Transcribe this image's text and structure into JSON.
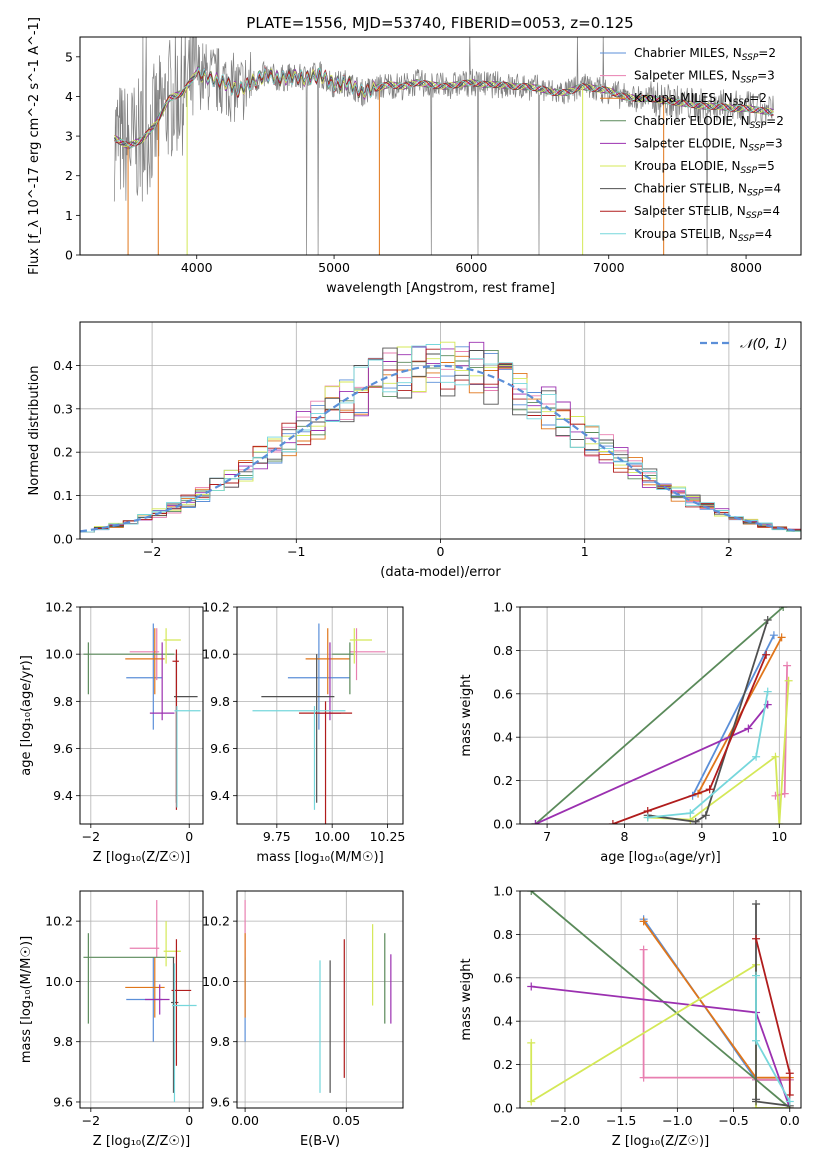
{
  "figure_title": "PLATE=1556, MJD=53740, FIBERID=0053, z=0.125",
  "colors": {
    "Chabrier MILES": "#5b8fd8",
    "Salpeter MILES": "#e87fb0",
    "Kroupa MILES": "#e0761a",
    "Chabrier ELODIE": "#5a8a5a",
    "Salpeter ELODIE": "#9b30b0",
    "Kroupa ELODIE": "#d4e857",
    "Chabrier STELIB": "#505050",
    "Salpeter STELIB": "#b01c1c",
    "Kroupa STELIB": "#76d7dc",
    "data": "#808080",
    "normal": "#5b8fd8"
  },
  "chart_data": [
    {
      "id": "spectrum",
      "type": "line",
      "title": "PLATE=1556, MJD=53740, FIBERID=0053, z=0.125",
      "xlabel": "wavelength [Angstrom, rest frame]",
      "ylabel": "Flux [f_λ 10^-17 erg cm^-2 s^-1 A^-1]",
      "xlim": [
        3150,
        8400
      ],
      "ylim": [
        0,
        5.5
      ],
      "xticks": [
        4000,
        5000,
        6000,
        7000,
        8000
      ],
      "yticks": [
        0,
        1,
        2,
        3,
        4,
        5
      ],
      "grid": false,
      "legend_position": "upper right",
      "legend": [
        {
          "label": "Chabrier MILES, N",
          "sub": "SSP",
          "tail": "=2",
          "key": "Chabrier MILES"
        },
        {
          "label": "Salpeter MILES, N",
          "sub": "SSP",
          "tail": "=3",
          "key": "Salpeter MILES"
        },
        {
          "label": "Kroupa MILES, N",
          "sub": "SSP",
          "tail": "=2",
          "key": "Kroupa MILES"
        },
        {
          "label": "Chabrier ELODIE, N",
          "sub": "SSP",
          "tail": "=2",
          "key": "Chabrier ELODIE"
        },
        {
          "label": "Salpeter ELODIE, N",
          "sub": "SSP",
          "tail": "=3",
          "key": "Salpeter ELODIE"
        },
        {
          "label": "Kroupa ELODIE, N",
          "sub": "SSP",
          "tail": "=5",
          "key": "Kroupa ELODIE"
        },
        {
          "label": "Chabrier STELIB, N",
          "sub": "SSP",
          "tail": "=4",
          "key": "Chabrier STELIB"
        },
        {
          "label": "Salpeter STELIB, N",
          "sub": "SSP",
          "tail": "=4",
          "key": "Salpeter STELIB"
        },
        {
          "label": "Kroupa STELIB, N",
          "sub": "SSP",
          "tail": "=4",
          "key": "Kroupa STELIB"
        }
      ],
      "continuum_knots": {
        "x": [
          3400,
          3500,
          3600,
          3700,
          3800,
          3900,
          4000,
          4100,
          4200,
          4300,
          4400,
          4500,
          4600,
          4700,
          4800,
          4900,
          5000,
          5100,
          5200,
          5300,
          5400,
          5500,
          5600,
          5700,
          5800,
          5900,
          6000,
          6100,
          6200,
          6300,
          6400,
          6500,
          6600,
          6700,
          6800,
          6900,
          7000,
          7100,
          7200,
          7300,
          7400,
          7500,
          7600,
          7700,
          7800,
          7900,
          8000,
          8100,
          8200
        ],
        "y": [
          2.95,
          2.75,
          2.9,
          3.3,
          3.95,
          4.1,
          4.6,
          4.45,
          4.35,
          4.15,
          4.35,
          4.55,
          4.45,
          4.5,
          4.45,
          4.55,
          4.3,
          4.35,
          4.1,
          4.2,
          4.3,
          4.25,
          4.35,
          4.3,
          4.25,
          4.3,
          4.35,
          4.3,
          4.3,
          4.25,
          4.25,
          4.2,
          4.1,
          4.1,
          4.25,
          4.2,
          4.15,
          4.0,
          3.95,
          3.95,
          3.9,
          3.85,
          3.8,
          3.75,
          3.75,
          3.7,
          3.7,
          3.65,
          3.6
        ]
      }
    },
    {
      "id": "residuals",
      "type": "line",
      "xlabel": "(data-model)/error",
      "ylabel": "Normed distribution",
      "xlim": [
        -2.5,
        2.5
      ],
      "ylim": [
        0,
        0.5
      ],
      "xticks": [
        -2,
        -1,
        0,
        1,
        2
      ],
      "yticks": [
        0.0,
        0.1,
        0.2,
        0.3,
        0.4
      ],
      "grid": true,
      "legend_position": "upper right",
      "legend": [
        {
          "label": "𝒩(0, 1)",
          "key": "normal"
        }
      ],
      "curve": {
        "name": "𝒩(0, 1)",
        "mean": 0,
        "sigma": 1
      }
    },
    {
      "id": "age_vs_Z",
      "type": "scatter",
      "xlabel": "Z [log₁₀(Z/Z☉)]",
      "ylabel": "age  [log₁₀(age/yr)]",
      "xlim": [
        -2.22,
        0.28
      ],
      "ylim": [
        9.28,
        10.2
      ],
      "xticks": [
        -2,
        0
      ],
      "yticks": [
        9.4,
        9.6,
        9.8,
        10.0,
        10.2
      ],
      "grid": true,
      "points": [
        {
          "key": "Chabrier MILES",
          "x": -0.73,
          "y": 9.9,
          "xerr": [
            0.55,
            0.18
          ],
          "yerr": [
            0.22,
            0.23
          ]
        },
        {
          "key": "Salpeter MILES",
          "x": -0.66,
          "y": 10.01,
          "xerr": [
            0.55,
            0.05
          ],
          "yerr": [
            0.12,
            0.1
          ]
        },
        {
          "key": "Kroupa MILES",
          "x": -0.7,
          "y": 9.98,
          "xerr": [
            0.6,
            0.2
          ],
          "yerr": [
            0.15,
            0.13
          ]
        },
        {
          "key": "Chabrier ELODIE",
          "x": -2.05,
          "y": 10.0,
          "xerr": [
            0.1,
            1.75
          ],
          "yerr": [
            0.17,
            0.05
          ]
        },
        {
          "key": "Salpeter ELODIE",
          "x": -0.55,
          "y": 9.75,
          "xerr": [
            0.25,
            0.25
          ],
          "yerr": [
            0.03,
            0.3
          ]
        },
        {
          "key": "Kroupa ELODIE",
          "x": -0.47,
          "y": 10.06,
          "xerr": [
            0.05,
            0.3
          ],
          "yerr": [
            0.1,
            0.05
          ]
        },
        {
          "key": "Chabrier STELIB",
          "x": -0.26,
          "y": 9.82,
          "xerr": [
            0.05,
            0.43
          ],
          "yerr": [
            0.45,
            0.18
          ]
        },
        {
          "key": "Salpeter STELIB",
          "x": -0.26,
          "y": 9.97,
          "xerr": [
            0.08,
            0.05
          ],
          "yerr": [
            0.63,
            0.05
          ]
        },
        {
          "key": "Kroupa STELIB",
          "x": -0.25,
          "y": 9.76,
          "xerr": [
            0.05,
            0.48
          ],
          "yerr": [
            0.41,
            0.02
          ]
        }
      ]
    },
    {
      "id": "age_vs_mass",
      "type": "scatter",
      "xlabel": "mass [log₁₀(M/M☉)]",
      "ylabel": "",
      "xlim": [
        9.57,
        10.32
      ],
      "ylim": [
        9.28,
        10.2
      ],
      "xticks": [
        9.75,
        10.0,
        10.25
      ],
      "yticks": [
        9.4,
        9.6,
        9.8,
        10.0,
        10.2
      ],
      "grid": true,
      "points": [
        {
          "key": "Chabrier MILES",
          "x": 9.94,
          "y": 9.9,
          "xerr": [
            0.14,
            0.14
          ],
          "yerr": [
            0.22,
            0.23
          ]
        },
        {
          "key": "Salpeter MILES",
          "x": 10.11,
          "y": 10.01,
          "xerr": [
            0.03,
            0.13
          ],
          "yerr": [
            0.12,
            0.1
          ]
        },
        {
          "key": "Kroupa MILES",
          "x": 9.98,
          "y": 9.98,
          "xerr": [
            0.1,
            0.1
          ],
          "yerr": [
            0.15,
            0.13
          ]
        },
        {
          "key": "Chabrier ELODIE",
          "x": 10.08,
          "y": 10.0,
          "xerr": [
            0.08,
            0.02
          ],
          "yerr": [
            0.17,
            0.05
          ]
        },
        {
          "key": "Salpeter ELODIE",
          "x": 9.99,
          "y": 9.75,
          "xerr": [
            0.05,
            0.05
          ],
          "yerr": [
            0.03,
            0.3
          ]
        },
        {
          "key": "Kroupa ELODIE",
          "x": 10.1,
          "y": 10.06,
          "xerr": [
            0.02,
            0.08
          ],
          "yerr": [
            0.1,
            0.05
          ]
        },
        {
          "key": "Chabrier STELIB",
          "x": 9.93,
          "y": 9.82,
          "xerr": [
            0.25,
            0.08
          ],
          "yerr": [
            0.45,
            0.18
          ]
        },
        {
          "key": "Salpeter STELIB",
          "x": 9.97,
          "y": 9.75,
          "xerr": [
            0.12,
            0.12
          ],
          "yerr": [
            0.63,
            0.05
          ]
        },
        {
          "key": "Kroupa STELIB",
          "x": 9.92,
          "y": 9.76,
          "xerr": [
            0.28,
            0.14
          ],
          "yerr": [
            0.42,
            0.02
          ]
        }
      ]
    },
    {
      "id": "weight_vs_age",
      "type": "line",
      "xlabel": "age  [log₁₀(age/yr)]",
      "ylabel": "mass weight",
      "xlim": [
        6.65,
        10.28
      ],
      "ylim": [
        0,
        1.0
      ],
      "xticks": [
        7,
        8,
        9,
        10
      ],
      "yticks": [
        0.0,
        0.2,
        0.4,
        0.6,
        0.8,
        1.0
      ],
      "grid": true,
      "series": [
        {
          "key": "Chabrier MILES",
          "x": [
            9.93,
            8.88
          ],
          "y": [
            0.87,
            0.13
          ]
        },
        {
          "key": "Salpeter MILES",
          "x": [
            10.1,
            10.07,
            9.95
          ],
          "y": [
            0.73,
            0.14,
            0.13
          ]
        },
        {
          "key": "Kroupa MILES",
          "x": [
            10.03,
            8.95
          ],
          "y": [
            0.86,
            0.14
          ]
        },
        {
          "key": "Chabrier ELODIE",
          "x": [
            10.05,
            6.85
          ],
          "y": [
            1.0,
            0.0
          ]
        },
        {
          "key": "Salpeter ELODIE",
          "x": [
            9.85,
            9.6,
            6.85
          ],
          "y": [
            0.55,
            0.44,
            0.0
          ]
        },
        {
          "key": "Kroupa ELODIE",
          "x": [
            10.12,
            10.0,
            9.95,
            8.85,
            8.3
          ],
          "y": [
            0.66,
            0.0,
            0.31,
            0.02,
            0.03
          ]
        },
        {
          "key": "Chabrier STELIB",
          "x": [
            9.85,
            9.05,
            8.92,
            8.3
          ],
          "y": [
            0.94,
            0.04,
            0.01,
            0.04
          ]
        },
        {
          "key": "Salpeter STELIB",
          "x": [
            9.83,
            9.1,
            8.3,
            7.85
          ],
          "y": [
            0.78,
            0.16,
            0.06,
            0.0
          ]
        },
        {
          "key": "Kroupa STELIB",
          "x": [
            9.85,
            9.7,
            8.85,
            8.3
          ],
          "y": [
            0.61,
            0.31,
            0.05,
            0.03
          ]
        }
      ]
    },
    {
      "id": "mass_vs_Z",
      "type": "scatter",
      "xlabel": "Z [log₁₀(Z/Z☉)]",
      "ylabel": "mass [log₁₀(M/M☉)]",
      "xlim": [
        -2.22,
        0.28
      ],
      "ylim": [
        9.58,
        10.3
      ],
      "xticks": [
        -2,
        0
      ],
      "yticks": [
        9.6,
        9.8,
        10.0,
        10.2
      ],
      "grid": true,
      "points": [
        {
          "key": "Chabrier MILES",
          "x": -0.73,
          "y": 9.94,
          "xerr": [
            0.55,
            0.18
          ],
          "yerr": [
            0.14,
            0.14
          ]
        },
        {
          "key": "Salpeter MILES",
          "x": -0.66,
          "y": 10.11,
          "xerr": [
            0.55,
            0.05
          ],
          "yerr": [
            0.03,
            0.16
          ]
        },
        {
          "key": "Kroupa MILES",
          "x": -0.7,
          "y": 9.98,
          "xerr": [
            0.6,
            0.2
          ],
          "yerr": [
            0.1,
            0.1
          ]
        },
        {
          "key": "Chabrier ELODIE",
          "x": -2.05,
          "y": 10.08,
          "xerr": [
            0.1,
            1.75
          ],
          "yerr": [
            0.22,
            0.08
          ]
        },
        {
          "key": "Salpeter ELODIE",
          "x": -0.6,
          "y": 9.94,
          "xerr": [
            0.3,
            0.2
          ],
          "yerr": [
            0.05,
            0.05
          ]
        },
        {
          "key": "Kroupa ELODIE",
          "x": -0.47,
          "y": 10.1,
          "xerr": [
            0.05,
            0.3
          ],
          "yerr": [
            0.05,
            0.1
          ]
        },
        {
          "key": "Chabrier STELIB",
          "x": -0.32,
          "y": 9.93,
          "xerr": [
            0.05,
            0.1
          ],
          "yerr": [
            0.3,
            0.15
          ]
        },
        {
          "key": "Salpeter STELIB",
          "x": -0.26,
          "y": 9.97,
          "xerr": [
            0.1,
            0.3
          ],
          "yerr": [
            0.25,
            0.17
          ]
        },
        {
          "key": "Kroupa STELIB",
          "x": -0.3,
          "y": 9.92,
          "xerr": [
            0.05,
            0.45
          ],
          "yerr": [
            0.32,
            0.14
          ]
        }
      ]
    },
    {
      "id": "mass_vs_ebv",
      "type": "scatter",
      "xlabel": "E(B-V)",
      "ylabel": "",
      "xlim": [
        -0.004,
        0.078
      ],
      "ylim": [
        9.58,
        10.3
      ],
      "xticks": [
        0.0,
        0.05
      ],
      "xticklabels": [
        "0.00",
        "0.05"
      ],
      "yticks": [
        9.6,
        9.8,
        10.0,
        10.2
      ],
      "grid": true,
      "points": [
        {
          "key": "Chabrier MILES",
          "x": 0.0,
          "y": 9.94,
          "xerr": [
            0,
            0
          ],
          "yerr": [
            0.14,
            0.14
          ]
        },
        {
          "key": "Salpeter MILES",
          "x": 0.0,
          "y": 10.11,
          "xerr": [
            0,
            0
          ],
          "yerr": [
            0.03,
            0.16
          ]
        },
        {
          "key": "Kroupa MILES",
          "x": 0.0,
          "y": 9.98,
          "xerr": [
            0,
            0
          ],
          "yerr": [
            0.1,
            0.18
          ]
        },
        {
          "key": "Chabrier ELODIE",
          "x": 0.069,
          "y": 10.02,
          "xerr": [
            0,
            0
          ],
          "yerr": [
            0.16,
            0.14
          ]
        },
        {
          "key": "Salpeter ELODIE",
          "x": 0.072,
          "y": 9.97,
          "xerr": [
            0,
            0
          ],
          "yerr": [
            0.11,
            0.12
          ]
        },
        {
          "key": "Kroupa ELODIE",
          "x": 0.063,
          "y": 10.06,
          "xerr": [
            0,
            0
          ],
          "yerr": [
            0.14,
            0.13
          ]
        },
        {
          "key": "Chabrier STELIB",
          "x": 0.042,
          "y": 9.85,
          "xerr": [
            0,
            0
          ],
          "yerr": [
            0.22,
            0.22
          ]
        },
        {
          "key": "Salpeter STELIB",
          "x": 0.049,
          "y": 9.93,
          "xerr": [
            0,
            0
          ],
          "yerr": [
            0.25,
            0.21
          ]
        },
        {
          "key": "Kroupa STELIB",
          "x": 0.037,
          "y": 9.85,
          "xerr": [
            0,
            0
          ],
          "yerr": [
            0.22,
            0.22
          ]
        }
      ]
    },
    {
      "id": "weight_vs_Z",
      "type": "line",
      "xlabel": "Z [log₁₀(Z/Z☉)]",
      "ylabel": "mass weight",
      "xlim": [
        -2.4,
        0.1
      ],
      "ylim": [
        0,
        1.0
      ],
      "xticks": [
        -2.0,
        -1.5,
        -1.0,
        -0.5,
        0.0
      ],
      "xticklabels": [
        "−2.0",
        "−1.5",
        "−1.0",
        "−0.5",
        "0.0"
      ],
      "yticks": [
        0.0,
        0.2,
        0.4,
        0.6,
        0.8,
        1.0
      ],
      "grid": true,
      "series": [
        {
          "key": "Chabrier MILES",
          "x": [
            -1.3,
            -0.3,
            0.0
          ],
          "y": [
            0.87,
            0.13,
            0.13
          ]
        },
        {
          "key": "Salpeter MILES",
          "x": [
            -1.3,
            -1.3,
            -0.3,
            -0.3,
            0.0
          ],
          "y": [
            0.73,
            0.14,
            0.14,
            0.13,
            0.13
          ]
        },
        {
          "key": "Kroupa MILES",
          "x": [
            -1.3,
            -0.3,
            0.0
          ],
          "y": [
            0.86,
            0.14,
            0.14
          ]
        },
        {
          "key": "Chabrier ELODIE",
          "x": [
            -2.3,
            0.0
          ],
          "y": [
            1.0,
            0.0
          ]
        },
        {
          "key": "Salpeter ELODIE",
          "x": [
            -2.3,
            -0.3,
            0.0
          ],
          "y": [
            0.56,
            0.44,
            0.0
          ]
        },
        {
          "key": "Kroupa ELODIE",
          "x": [
            -2.3,
            -2.3,
            -0.3,
            -0.3,
            0.0
          ],
          "y": [
            0.3,
            0.03,
            0.66,
            0.0,
            0.0
          ]
        },
        {
          "key": "Chabrier STELIB",
          "x": [
            -0.3,
            -0.3,
            -0.3,
            0.0
          ],
          "y": [
            0.94,
            0.04,
            0.03,
            0.01
          ]
        },
        {
          "key": "Salpeter STELIB",
          "x": [
            -0.3,
            0.0,
            0.0
          ],
          "y": [
            0.78,
            0.16,
            0.06
          ]
        },
        {
          "key": "Kroupa STELIB",
          "x": [
            -0.3,
            -0.3,
            0.0
          ],
          "y": [
            0.61,
            0.31,
            0.03
          ]
        }
      ]
    }
  ]
}
